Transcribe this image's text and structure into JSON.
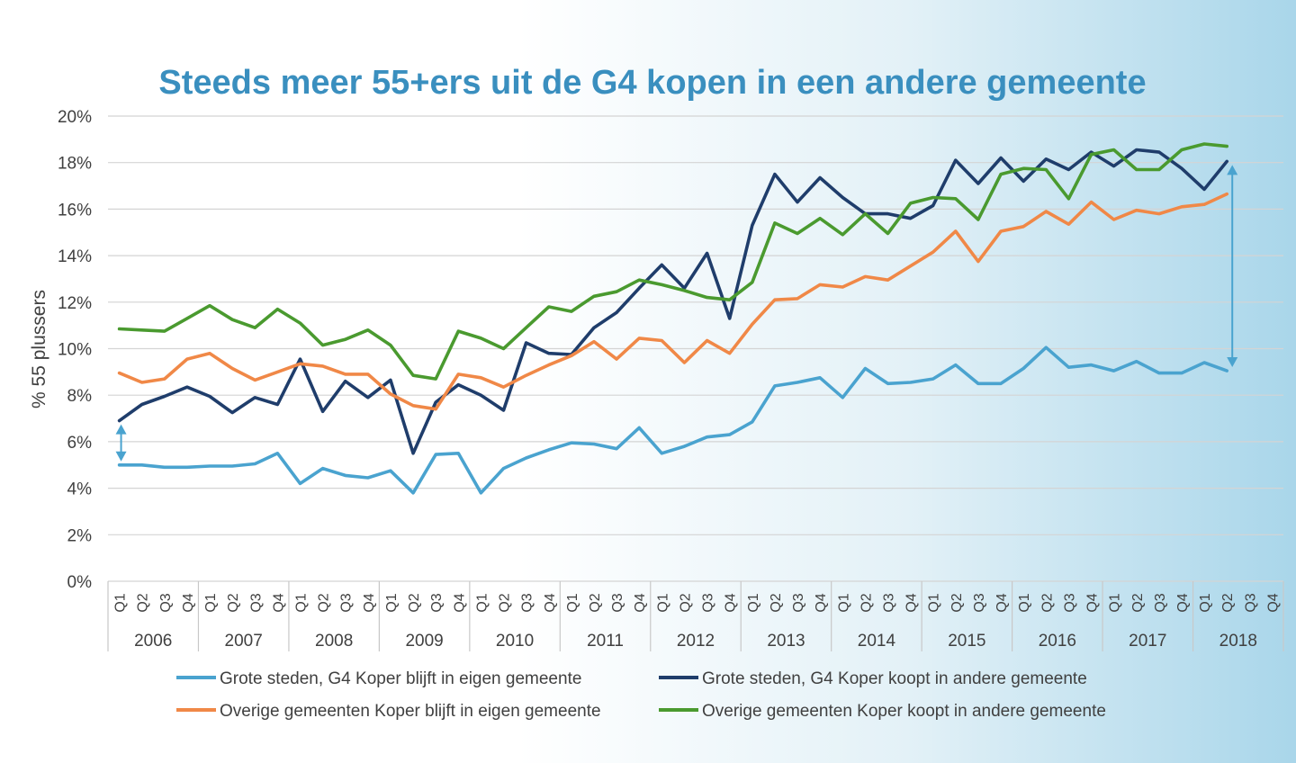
{
  "chart_data": {
    "type": "line",
    "title": "Steeds meer 55+ers uit de G4 kopen in een andere gemeente",
    "ylabel": "% 55 plussers",
    "xlabel": "",
    "ylim": [
      0,
      20
    ],
    "yticks": [
      "0%",
      "2%",
      "4%",
      "6%",
      "8%",
      "10%",
      "12%",
      "14%",
      "16%",
      "18%",
      "20%"
    ],
    "quarters": [
      "Q1",
      "Q2",
      "Q3",
      "Q4"
    ],
    "years": [
      "2006",
      "2007",
      "2008",
      "2009",
      "2010",
      "2011",
      "2012",
      "2013",
      "2014",
      "2015",
      "2016",
      "2017",
      "2018"
    ],
    "grid": true,
    "legend_position": "bottom",
    "series": [
      {
        "name": "Grote steden, G4 Koper blijft in eigen gemeente",
        "color": "#4aa3cf",
        "values": [
          5.0,
          5.0,
          4.9,
          4.9,
          4.95,
          4.95,
          5.05,
          5.5,
          4.2,
          4.85,
          4.55,
          4.45,
          4.75,
          3.8,
          5.45,
          5.5,
          3.8,
          4.85,
          5.3,
          5.65,
          5.95,
          5.9,
          5.7,
          6.6,
          5.5,
          5.8,
          6.2,
          6.3,
          6.85,
          8.4,
          8.55,
          8.75,
          7.9,
          9.15,
          8.5,
          8.55,
          8.7,
          9.3,
          8.5,
          8.5,
          9.15,
          10.05,
          9.2,
          9.3,
          9.05,
          9.45,
          8.95,
          8.95,
          9.4,
          9.05
        ]
      },
      {
        "name": "Grote steden, G4 Koper koopt in andere gemeente",
        "color": "#1f3d6b",
        "values": [
          6.9,
          7.6,
          7.95,
          8.35,
          7.95,
          7.25,
          7.9,
          7.6,
          9.55,
          7.3,
          8.6,
          7.9,
          8.65,
          5.5,
          7.7,
          8.45,
          8.0,
          7.35,
          10.25,
          9.8,
          9.75,
          10.9,
          11.55,
          12.6,
          13.6,
          12.6,
          14.1,
          11.3,
          15.3,
          17.5,
          16.3,
          17.35,
          16.5,
          15.8,
          15.8,
          15.6,
          16.15,
          18.1,
          17.1,
          18.2,
          17.2,
          18.15,
          17.7,
          18.45,
          17.85,
          18.55,
          18.45,
          17.75,
          16.85,
          18.05
        ]
      },
      {
        "name": "Overige gemeenten Koper blijft in eigen gemeente",
        "color": "#f08847",
        "values": [
          8.95,
          8.55,
          8.7,
          9.55,
          9.8,
          9.15,
          8.65,
          9.0,
          9.35,
          9.25,
          8.9,
          8.9,
          8.05,
          7.55,
          7.4,
          8.9,
          8.75,
          8.35,
          8.85,
          9.3,
          9.7,
          10.3,
          9.55,
          10.45,
          10.35,
          9.4,
          10.35,
          9.8,
          11.05,
          12.1,
          12.15,
          12.75,
          12.65,
          13.1,
          12.95,
          13.55,
          14.15,
          15.05,
          13.75,
          15.05,
          15.25,
          15.9,
          15.35,
          16.3,
          15.55,
          15.95,
          15.8,
          16.1,
          16.2,
          16.65
        ]
      },
      {
        "name": "Overige gemeenten Koper koopt in andere gemeente",
        "color": "#4a9a2f",
        "values": [
          10.85,
          10.8,
          10.75,
          11.3,
          11.85,
          11.25,
          10.9,
          11.7,
          11.1,
          10.15,
          10.4,
          10.8,
          10.15,
          8.85,
          8.7,
          10.75,
          10.45,
          10.0,
          10.9,
          11.8,
          11.6,
          12.25,
          12.45,
          12.95,
          12.75,
          12.5,
          12.2,
          12.1,
          12.85,
          15.4,
          14.95,
          15.6,
          14.9,
          15.8,
          14.95,
          16.25,
          16.5,
          16.45,
          15.55,
          17.5,
          17.75,
          17.7,
          16.45,
          18.35,
          18.55,
          17.7,
          17.7,
          18.55,
          18.8,
          18.7
        ]
      }
    ],
    "annotations": [
      {
        "type": "double-arrow",
        "series_from": 0,
        "series_to": 1,
        "at": "2006 Q1",
        "from_value": 5.0,
        "to_value": 6.9
      },
      {
        "type": "double-arrow",
        "series_from": 0,
        "series_to": 1,
        "at": "2018 Q2",
        "from_value": 9.05,
        "to_value": 18.05
      }
    ],
    "annotation_color": "#4aa3cf"
  }
}
